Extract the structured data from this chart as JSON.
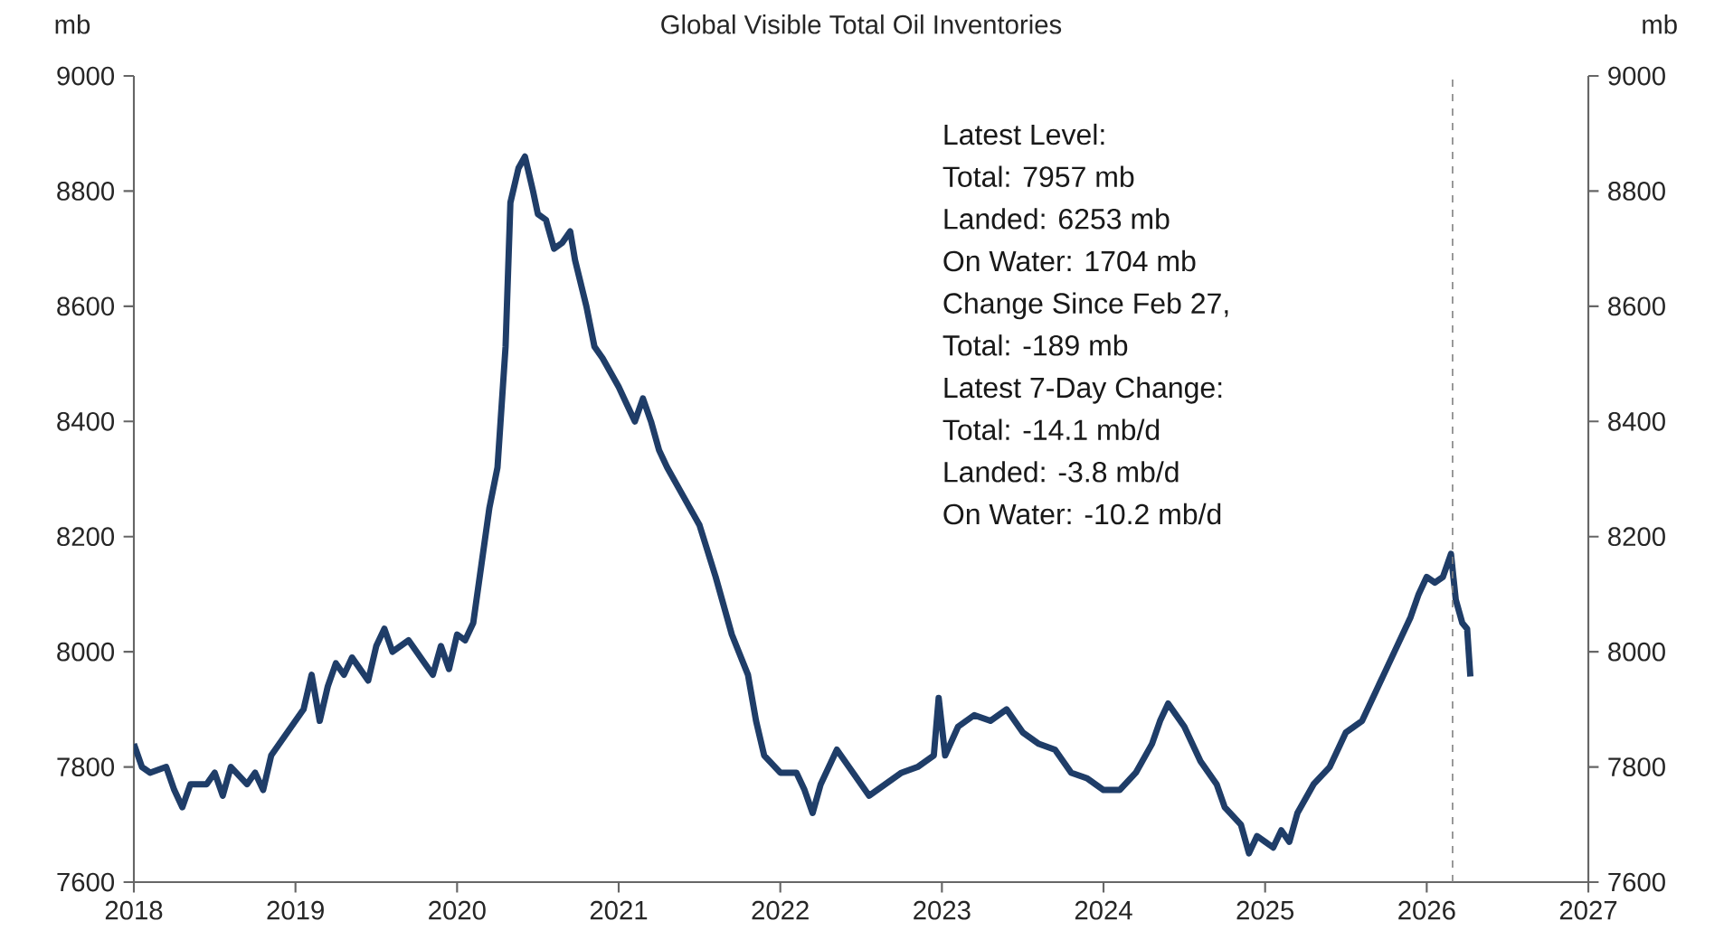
{
  "chart_data": {
    "type": "line",
    "title": "Global Visible Total Oil Inventories",
    "ylabel": "mb",
    "y2label": "mb",
    "x": [
      2018.0,
      2018.05,
      2018.1,
      2018.2,
      2018.25,
      2018.3,
      2018.35,
      2018.45,
      2018.5,
      2018.55,
      2018.6,
      2018.7,
      2018.75,
      2018.8,
      2018.85,
      2018.9,
      2019.0,
      2019.05,
      2019.1,
      2019.15,
      2019.2,
      2019.25,
      2019.3,
      2019.35,
      2019.45,
      2019.5,
      2019.55,
      2019.6,
      2019.7,
      2019.8,
      2019.85,
      2019.9,
      2019.95,
      2020.0,
      2020.05,
      2020.1,
      2020.15,
      2020.2,
      2020.25,
      2020.3,
      2020.33,
      2020.38,
      2020.42,
      2020.47,
      2020.5,
      2020.55,
      2020.6,
      2020.65,
      2020.7,
      2020.73,
      2020.8,
      2020.85,
      2020.9,
      2021.0,
      2021.05,
      2021.1,
      2021.15,
      2021.2,
      2021.25,
      2021.3,
      2021.4,
      2021.5,
      2021.6,
      2021.7,
      2021.8,
      2021.85,
      2021.9,
      2022.0,
      2022.1,
      2022.15,
      2022.2,
      2022.25,
      2022.35,
      2022.45,
      2022.55,
      2022.65,
      2022.75,
      2022.85,
      2022.95,
      2022.98,
      2023.02,
      2023.1,
      2023.2,
      2023.3,
      2023.4,
      2023.5,
      2023.6,
      2023.7,
      2023.8,
      2023.9,
      2024.0,
      2024.1,
      2024.2,
      2024.3,
      2024.35,
      2024.4,
      2024.45,
      2024.5,
      2024.6,
      2024.7,
      2024.75,
      2024.85,
      2024.9,
      2024.95,
      2025.0,
      2025.05,
      2025.1,
      2025.15,
      2025.2,
      2025.3,
      2025.4,
      2025.5,
      2025.6,
      2025.7,
      2025.8,
      2025.9,
      2025.95,
      2026.0,
      2026.05,
      2026.1,
      2026.15,
      2026.18,
      2026.22,
      2026.25,
      2026.27
    ],
    "series": [
      {
        "color": "#1f3d68",
        "values": [
          7840,
          7800,
          7790,
          7800,
          7760,
          7730,
          7770,
          7770,
          7790,
          7750,
          7800,
          7770,
          7790,
          7760,
          7820,
          7840,
          7880,
          7900,
          7960,
          7880,
          7940,
          7980,
          7960,
          7990,
          7950,
          8010,
          8040,
          8000,
          8020,
          7980,
          7960,
          8010,
          7970,
          8030,
          8020,
          8050,
          8150,
          8250,
          8320,
          8530,
          8780,
          8840,
          8860,
          8800,
          8760,
          8750,
          8700,
          8710,
          8730,
          8680,
          8600,
          8530,
          8510,
          8460,
          8430,
          8400,
          8440,
          8400,
          8350,
          8320,
          8270,
          8220,
          8130,
          8030,
          7960,
          7880,
          7820,
          7790,
          7790,
          7760,
          7720,
          7770,
          7830,
          7790,
          7750,
          7770,
          7790,
          7800,
          7820,
          7920,
          7820,
          7870,
          7890,
          7880,
          7900,
          7860,
          7840,
          7830,
          7790,
          7780,
          7760,
          7760,
          7790,
          7840,
          7880,
          7910,
          7890,
          7870,
          7810,
          7770,
          7730,
          7700,
          7650,
          7680,
          7670,
          7660,
          7690,
          7670,
          7720,
          7770,
          7800,
          7860,
          7880,
          7940,
          8000,
          8060,
          8100,
          8130,
          8120,
          8130,
          8170,
          8090,
          8050,
          8040,
          7957
        ]
      }
    ],
    "xlim": [
      2018,
      2027
    ],
    "xticks": [
      2018,
      2019,
      2020,
      2021,
      2022,
      2023,
      2024,
      2025,
      2026,
      2027
    ],
    "ylim": [
      7600,
      9000
    ],
    "yticks": [
      7600,
      7800,
      8000,
      8200,
      8400,
      8600,
      8800,
      9000
    ],
    "y2lim": [
      7600,
      9000
    ],
    "y2ticks": [
      7600,
      7800,
      8000,
      8200,
      8400,
      8600,
      8800,
      9000
    ],
    "ref_lines": [
      {
        "axis": "x",
        "value": 2026.16,
        "color": "#808080",
        "line_style": "dashed"
      }
    ],
    "annotations": [
      "Latest Level:",
      "Total: 7957 mb",
      "Landed: 6253 mb",
      "On Water: 1704 mb",
      "Change Since Feb 27,",
      "Total: -189 mb",
      "Latest 7-Day Change:",
      "Total: -14.1 mb/d",
      "Landed: -3.8 mb/d",
      "On Water: -10.2 mb/d"
    ],
    "grid": false,
    "marker": "none",
    "line_style": "solid"
  }
}
